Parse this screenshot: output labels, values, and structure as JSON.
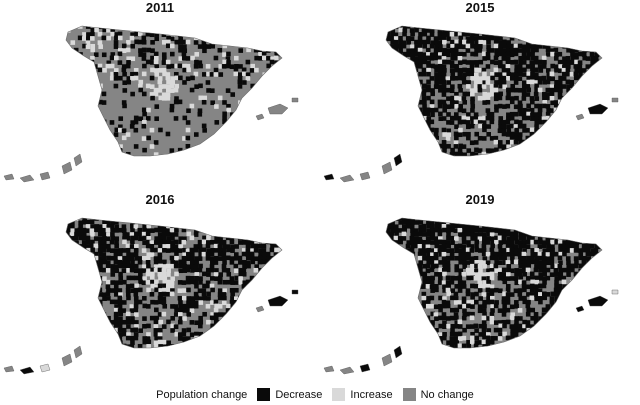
{
  "colors": {
    "decrease": "#0a0a0a",
    "increase": "#d9d9d9",
    "no_change": "#858585"
  },
  "panels": [
    {
      "title": "2011",
      "mix": {
        "decrease": 0.15,
        "increase": 0.05,
        "no_change": 0.8
      }
    },
    {
      "title": "2015",
      "mix": {
        "decrease": 0.5,
        "increase": 0.08,
        "no_change": 0.42
      }
    },
    {
      "title": "2016",
      "mix": {
        "decrease": 0.45,
        "increase": 0.1,
        "no_change": 0.45
      }
    },
    {
      "title": "2019",
      "mix": {
        "decrease": 0.55,
        "increase": 0.08,
        "no_change": 0.37
      }
    }
  ],
  "legend": {
    "title": "Population change",
    "items": [
      {
        "label": "Decrease",
        "color_key": "decrease"
      },
      {
        "label": "Increase",
        "color_key": "increase"
      },
      {
        "label": "No change",
        "color_key": "no_change"
      }
    ]
  }
}
